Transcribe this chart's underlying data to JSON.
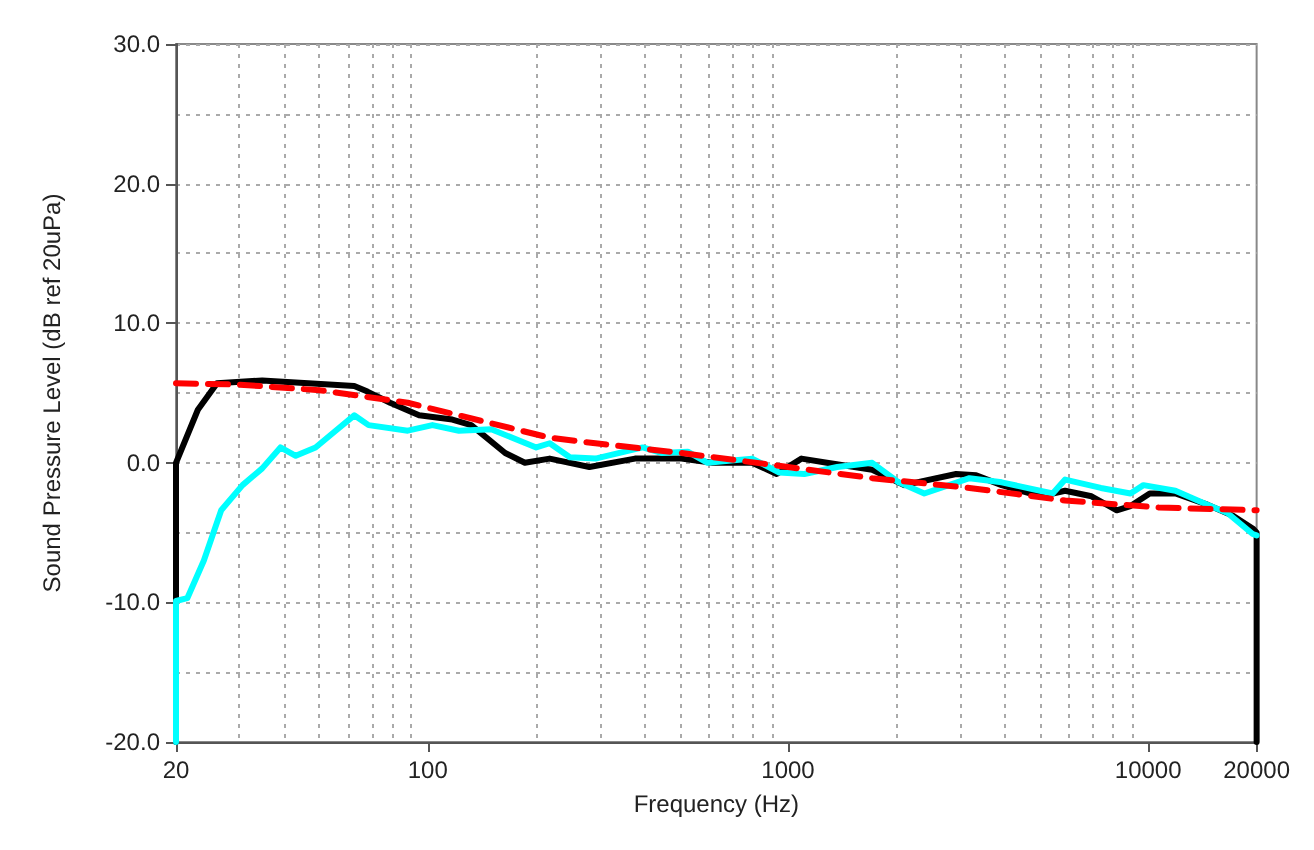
{
  "chart_data": {
    "type": "line",
    "xlabel": "Frequency (Hz)",
    "ylabel": "Sound Pressure Level (dB ref 20uPa)",
    "log": "x",
    "grid": true,
    "marker": "none",
    "xlim": [
      20,
      20000
    ],
    "xticks": [
      20,
      100,
      1000,
      10000,
      20000
    ],
    "ylim": [
      -20,
      30
    ],
    "yticks": [
      {
        "value": -20,
        "label": "-20.0"
      },
      {
        "value": -10,
        "label": "-10.0"
      },
      {
        "value": 0,
        "label": "0.0"
      },
      {
        "value": 10,
        "label": "10.0"
      },
      {
        "value": 20,
        "label": "20.0"
      },
      {
        "value": 30,
        "label": "30.0"
      }
    ],
    "series": [
      {
        "color": "#000000",
        "line_style": "solid",
        "x": [
          20,
          20,
          23,
          26,
          34.7,
          62.5,
          68,
          78.6,
          94.6,
          117,
          132,
          164,
          186,
          218,
          281,
          376,
          506,
          617,
          795,
          930,
          1090,
          1283,
          1713,
          2100,
          2930,
          3330,
          3920,
          5020,
          5880,
          6960,
          8180,
          8930,
          10100,
          11900,
          14600,
          17200,
          19500,
          20000,
          20000
        ],
        "values": [
          -20,
          0,
          3.8,
          5.7,
          5.9,
          5.5,
          5.1,
          4.3,
          3.4,
          3.1,
          2.7,
          0.7,
          0,
          0.3,
          -0.3,
          0.3,
          0.3,
          0,
          0,
          -0.8,
          0.3,
          0,
          -0.5,
          -1.6,
          -0.8,
          -0.9,
          -1.6,
          -2.4,
          -2,
          -2.4,
          -3.4,
          -3.1,
          -2.2,
          -2.2,
          -3,
          -3.8,
          -4.7,
          -5,
          -20
        ]
      },
      {
        "color": "#00ffff",
        "line_style": "solid",
        "x": [
          20,
          20,
          21.5,
          23.9,
          26.7,
          30.6,
          34.7,
          39,
          43,
          48.8,
          55.5,
          62.5,
          68.5,
          88,
          103,
          122,
          150,
          200,
          218,
          248,
          292,
          395,
          447,
          527,
          598,
          795,
          946,
          1110,
          1370,
          1713,
          2030,
          2390,
          3190,
          3920,
          5430,
          5880,
          7390,
          8930,
          9700,
          11900,
          14600,
          16600,
          19500,
          20000
        ],
        "values": [
          -20,
          -9.9,
          -9.7,
          -7,
          -3.4,
          -1.6,
          -0.4,
          1.1,
          0.5,
          1.1,
          2.3,
          3.4,
          2.7,
          2.3,
          2.7,
          2.3,
          2.4,
          1.1,
          1.4,
          0.4,
          0.3,
          1.1,
          0.7,
          0.8,
          0,
          0.3,
          -0.7,
          -0.8,
          -0.3,
          0,
          -1.4,
          -2.2,
          -1.1,
          -1.4,
          -2.2,
          -1.2,
          -1.8,
          -2.2,
          -1.6,
          -2,
          -3,
          -3.6,
          -5.1,
          -5.2
        ]
      },
      {
        "color": "#ff0000",
        "line_style": "dashed",
        "x": [
          20,
          30,
          50,
          88,
          218,
          292,
          506,
          1000,
          1713,
          3190,
          5880,
          10700,
          20000
        ],
        "values": [
          5.7,
          5.6,
          5.2,
          4.3,
          1.8,
          1.4,
          0.7,
          -0.3,
          -1.1,
          -1.8,
          -2.7,
          -3.2,
          -3.4
        ]
      }
    ]
  }
}
